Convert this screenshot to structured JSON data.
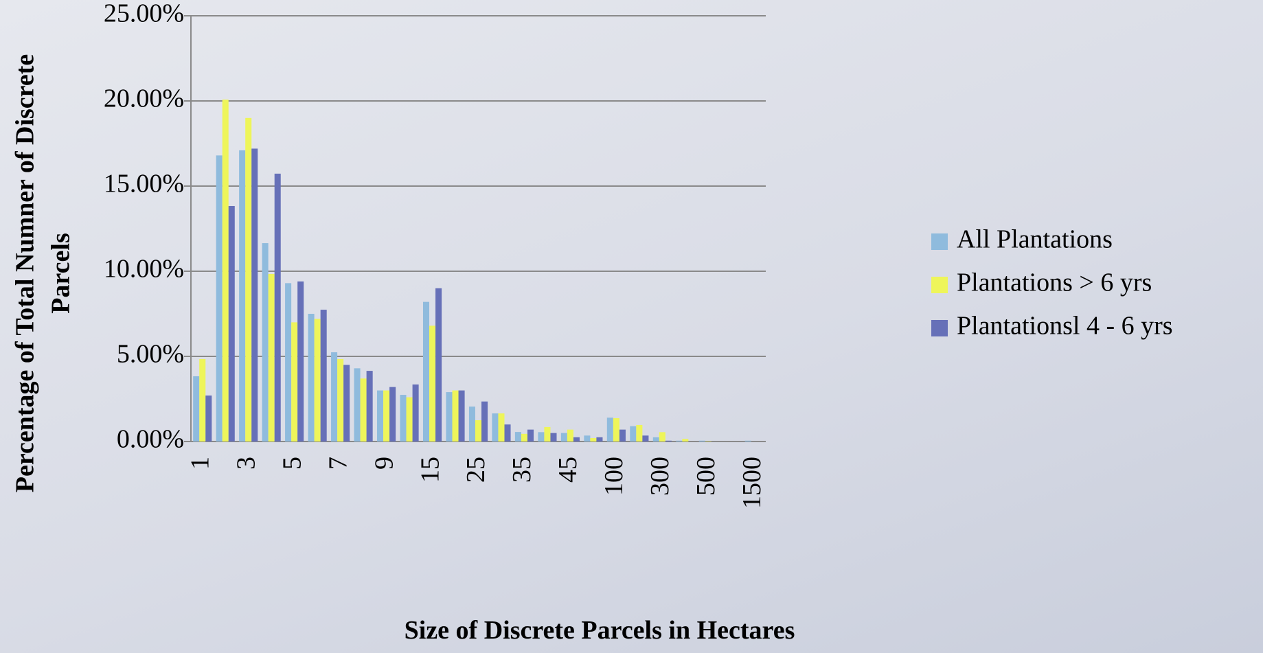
{
  "chart_data": {
    "type": "bar",
    "x_label": "Size of Discrete Parcels in Hectares",
    "y_label": [
      "Percentage of Total Numner of Discrete",
      "Parcels"
    ],
    "categories": [
      "1",
      null,
      "3",
      null,
      "5",
      null,
      "7",
      null,
      "9",
      null,
      "15",
      null,
      "25",
      null,
      "35",
      null,
      "45",
      null,
      "100",
      null,
      "300",
      null,
      "500",
      null,
      "1500"
    ],
    "series": [
      {
        "name": "All Plantations",
        "color": "#8fbbdd",
        "values": [
          3.83,
          16.8,
          17.1,
          11.65,
          9.3,
          7.5,
          5.24,
          4.3,
          3.0,
          2.74,
          8.2,
          2.9,
          2.05,
          1.65,
          0.56,
          0.55,
          0.5,
          0.35,
          1.4,
          0.9,
          0.25,
          0.05,
          0.05,
          0,
          0.05
        ]
      },
      {
        "name": "Plantations > 6 yrs",
        "color": "#eef55a",
        "values": [
          4.84,
          20.08,
          19.0,
          9.84,
          7.0,
          7.2,
          4.84,
          3.7,
          3.0,
          2.6,
          6.8,
          3.0,
          1.25,
          1.65,
          0.45,
          0.85,
          0.7,
          0.2,
          1.37,
          0.97,
          0.55,
          0.15,
          0.02,
          0,
          0
        ]
      },
      {
        "name": "Plantationsl 4 - 6 yrs",
        "color": "#6670b8",
        "values": [
          2.7,
          13.83,
          17.2,
          15.73,
          9.4,
          7.74,
          4.5,
          4.15,
          3.2,
          3.35,
          9.0,
          3.0,
          2.35,
          1.0,
          0.7,
          0.5,
          0.25,
          0.25,
          0.7,
          0.35,
          0.05,
          0,
          0,
          0,
          0
        ]
      }
    ],
    "ylim": [
      0,
      25
    ],
    "yticks": [
      {
        "value": 0,
        "label": "0.00%"
      },
      {
        "value": 5,
        "label": "5.00%"
      },
      {
        "value": 10,
        "label": "10.00%"
      },
      {
        "value": 15,
        "label": "15.00%"
      },
      {
        "value": 20,
        "label": "20.00%"
      },
      {
        "value": 25,
        "label": "25.00%"
      }
    ],
    "grid": true,
    "legend": "right"
  }
}
